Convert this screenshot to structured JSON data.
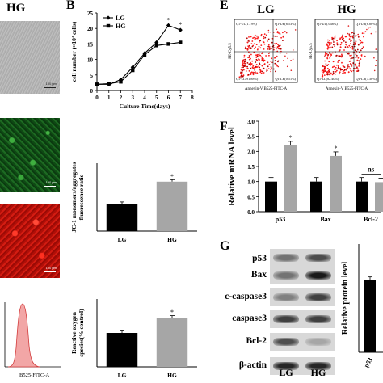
{
  "panel_titles": {
    "left_header": "HG",
    "b": "B",
    "e": "E",
    "f": "F",
    "g": "G"
  },
  "micrograph_scalebar": "100 μm",
  "flow_axis_label": "B525-FITC-A",
  "chart_data": [
    {
      "id": "B",
      "type": "line",
      "x": [
        0,
        1,
        2,
        3,
        4,
        5,
        6,
        7
      ],
      "series": [
        {
          "name": "LG",
          "values": [
            2,
            2,
            3.5,
            7.5,
            12,
            15.5,
            21,
            19.5
          ]
        },
        {
          "name": "HG",
          "values": [
            2,
            2.2,
            2.8,
            6.5,
            11.5,
            14.5,
            15,
            15.5
          ]
        }
      ],
      "xlabel": "Culture Time(days)",
      "ylabel": "cell number (×10⁴ cells)",
      "xlim": [
        0,
        8
      ],
      "ylim": [
        0,
        25
      ],
      "yticks": [
        0,
        5,
        10,
        15,
        20,
        25
      ],
      "xticks": [
        0,
        1,
        2,
        3,
        4,
        5,
        6,
        7,
        8
      ],
      "annotations": [
        "*",
        "*"
      ],
      "legend": "top-left"
    },
    {
      "id": "JC1",
      "type": "bar",
      "categories": [
        "LG",
        "HG"
      ],
      "values": [
        0.28,
        0.51
      ],
      "ylabel": "JC-1 monomers/aggregates fluorescence ratio",
      "ylim": [
        0,
        0.7
      ],
      "annotations": [
        "",
        "*"
      ]
    },
    {
      "id": "ROS",
      "type": "bar",
      "categories": [
        "LG",
        "HG"
      ],
      "values": [
        100,
        145
      ],
      "ylabel": "Reactive oxygen species(% control)",
      "ylim": [
        0,
        200
      ],
      "annotations": [
        "",
        "*"
      ]
    },
    {
      "id": "F",
      "type": "bar",
      "categories": [
        "p53",
        "Bax",
        "Bcl-2"
      ],
      "series": [
        {
          "name": "LG",
          "values": [
            1.0,
            1.0,
            1.0
          ]
        },
        {
          "name": "HG",
          "values": [
            2.2,
            1.85,
            0.98
          ]
        }
      ],
      "ylabel": "Relative mRNA level",
      "ylim": [
        0,
        3.0
      ],
      "yticks": [
        0.0,
        0.5,
        1.0,
        1.5,
        2.0,
        2.5,
        3.0
      ],
      "annotations": [
        "*",
        "*",
        "ns"
      ]
    },
    {
      "id": "G-quant",
      "type": "bar",
      "categories": [
        "p53"
      ],
      "values": [
        1.0
      ],
      "ylabel": "Relative protein level",
      "ylim": [
        0,
        1.5
      ]
    }
  ],
  "flow_panels": [
    {
      "title": "LG",
      "q1_ul": "Q1-UL(1.19%)",
      "q1_ur": "Q1-UR(6.53%)",
      "q1_ll": "Q1-LL(91.88%)",
      "q1_lr": "Q1-LR(0.51%)",
      "xlabel": "Annexin-V B525-FITC-A",
      "ylabel": "PE-Cy5.5"
    },
    {
      "title": "HG",
      "q1_ul": "Q1-UL(3.48%)",
      "q1_ur": "Q1-UR(6.88%)",
      "q1_ll": "Q1-LL(82.40%)",
      "q1_lr": "Q1-LR(7.30%)",
      "xlabel": "Annexin-V B525-FITC-A",
      "ylabel": "PE-Cy5.5"
    }
  ],
  "blot": {
    "rows": [
      "p53",
      "Bax",
      "c-caspase3",
      "caspase3",
      "Bcl-2",
      "β-actin"
    ],
    "lanes": [
      "LG",
      "HG"
    ]
  }
}
